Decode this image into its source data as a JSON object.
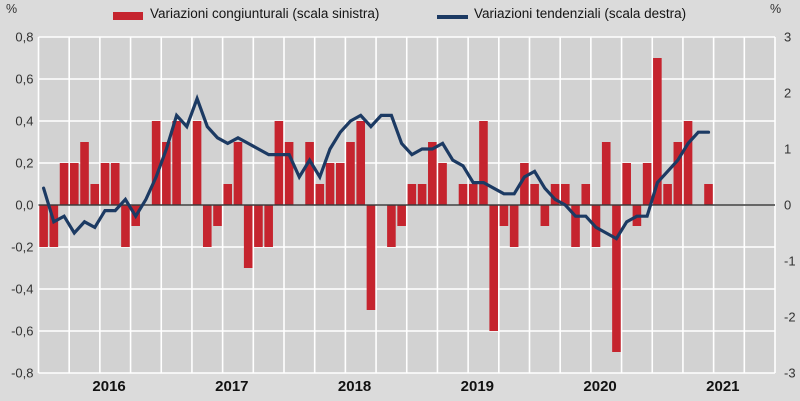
{
  "legend": [
    {
      "label": "Variazioni congiunturali (scala sinistra)",
      "swatch": "bar-swatch"
    },
    {
      "label": "Variazioni tendenziali (scala destra)",
      "swatch": "line-swatch"
    }
  ],
  "colors": {
    "bar": "#c5242e",
    "line": "#1c3a63",
    "plot_bg": "#d2d2d2",
    "page_bg": "#dbdbdb",
    "grid": "#ffffff",
    "zero_line": "#3a3a3a",
    "tick_text": "#333333",
    "year_text": "#111111"
  },
  "axes": {
    "left": {
      "unit": "%",
      "ticks": [
        {
          "label": "0,8",
          "value": 0.8
        },
        {
          "label": "0,6",
          "value": 0.6
        },
        {
          "label": "0,4",
          "value": 0.4
        },
        {
          "label": "0,2",
          "value": 0.2
        },
        {
          "label": "0,0",
          "value": 0.0
        },
        {
          "label": "-0,2",
          "value": -0.2
        },
        {
          "label": "-0,4",
          "value": -0.4
        },
        {
          "label": "-0,6",
          "value": -0.6
        },
        {
          "label": "-0,8",
          "value": -0.8
        }
      ]
    },
    "right": {
      "unit": "%",
      "ticks": [
        {
          "label": "3",
          "value": 3
        },
        {
          "label": "2",
          "value": 2
        },
        {
          "label": "1",
          "value": 1
        },
        {
          "label": "0",
          "value": 0
        },
        {
          "label": "-1",
          "value": -1
        },
        {
          "label": "-2",
          "value": -2
        },
        {
          "label": "-3",
          "value": -3
        }
      ]
    },
    "x": {
      "years": [
        "2016",
        "2017",
        "2018",
        "2019",
        "2020",
        "2021"
      ]
    }
  },
  "chart_data": {
    "type": "bar+line combo, dual axis",
    "x_axis": {
      "start": "2016-01",
      "end_of_axis": "2021-12",
      "total_month_slots": 72,
      "gridlines": "quarterly"
    },
    "months": [
      "2016-01",
      "2016-02",
      "2016-03",
      "2016-04",
      "2016-05",
      "2016-06",
      "2016-07",
      "2016-08",
      "2016-09",
      "2016-10",
      "2016-11",
      "2016-12",
      "2017-01",
      "2017-02",
      "2017-03",
      "2017-04",
      "2017-05",
      "2017-06",
      "2017-07",
      "2017-08",
      "2017-09",
      "2017-10",
      "2017-11",
      "2017-12",
      "2018-01",
      "2018-02",
      "2018-03",
      "2018-04",
      "2018-05",
      "2018-06",
      "2018-07",
      "2018-08",
      "2018-09",
      "2018-10",
      "2018-11",
      "2018-12",
      "2019-01",
      "2019-02",
      "2019-03",
      "2019-04",
      "2019-05",
      "2019-06",
      "2019-07",
      "2019-08",
      "2019-09",
      "2019-10",
      "2019-11",
      "2019-12",
      "2020-01",
      "2020-02",
      "2020-03",
      "2020-04",
      "2020-05",
      "2020-06",
      "2020-07",
      "2020-08",
      "2020-09",
      "2020-10",
      "2020-11",
      "2020-12",
      "2021-01",
      "2021-02",
      "2021-03",
      "2021-04",
      "2021-05",
      "2021-06"
    ],
    "series": [
      {
        "name": "Variazioni congiunturali (scala sinistra)",
        "type": "bar",
        "axis": "left",
        "ylim": [
          -0.8,
          0.8
        ],
        "values": [
          -0.2,
          -0.2,
          0.2,
          0.2,
          0.3,
          0.1,
          0.2,
          0.2,
          -0.2,
          -0.1,
          0.0,
          0.4,
          0.3,
          0.4,
          0.0,
          0.4,
          -0.2,
          -0.1,
          0.1,
          0.3,
          -0.3,
          -0.2,
          -0.2,
          0.4,
          0.3,
          0.0,
          0.3,
          0.1,
          0.2,
          0.2,
          0.3,
          0.4,
          -0.5,
          0.0,
          -0.2,
          -0.1,
          0.1,
          0.1,
          0.3,
          0.2,
          0.0,
          0.1,
          0.1,
          0.4,
          -0.6,
          -0.1,
          -0.2,
          0.2,
          0.1,
          -0.1,
          0.1,
          0.1,
          -0.2,
          0.1,
          -0.2,
          0.3,
          -0.7,
          0.2,
          -0.1,
          0.2,
          0.7,
          0.1,
          0.3,
          0.4,
          0.0,
          0.1
        ]
      },
      {
        "name": "Variazioni tendenziali (scala destra)",
        "type": "line",
        "axis": "right",
        "ylim": [
          -3,
          3
        ],
        "values": [
          0.3,
          -0.3,
          -0.2,
          -0.5,
          -0.3,
          -0.4,
          -0.1,
          -0.1,
          0.1,
          -0.2,
          0.1,
          0.5,
          1.0,
          1.6,
          1.4,
          1.9,
          1.4,
          1.2,
          1.1,
          1.2,
          1.1,
          1.0,
          0.9,
          0.9,
          0.9,
          0.5,
          0.8,
          0.5,
          1.0,
          1.3,
          1.5,
          1.6,
          1.4,
          1.6,
          1.6,
          1.1,
          0.9,
          1.0,
          1.0,
          1.1,
          0.8,
          0.7,
          0.4,
          0.4,
          0.3,
          0.2,
          0.2,
          0.5,
          0.6,
          0.3,
          0.1,
          0.0,
          -0.2,
          -0.2,
          -0.4,
          -0.5,
          -0.6,
          -0.3,
          -0.2,
          -0.2,
          0.4,
          0.6,
          0.8,
          1.1,
          1.3,
          1.3
        ]
      }
    ],
    "title": "",
    "xlabel": "",
    "ylabel_left": "%",
    "ylabel_right": "%",
    "grid": true,
    "legend_position": "top"
  }
}
